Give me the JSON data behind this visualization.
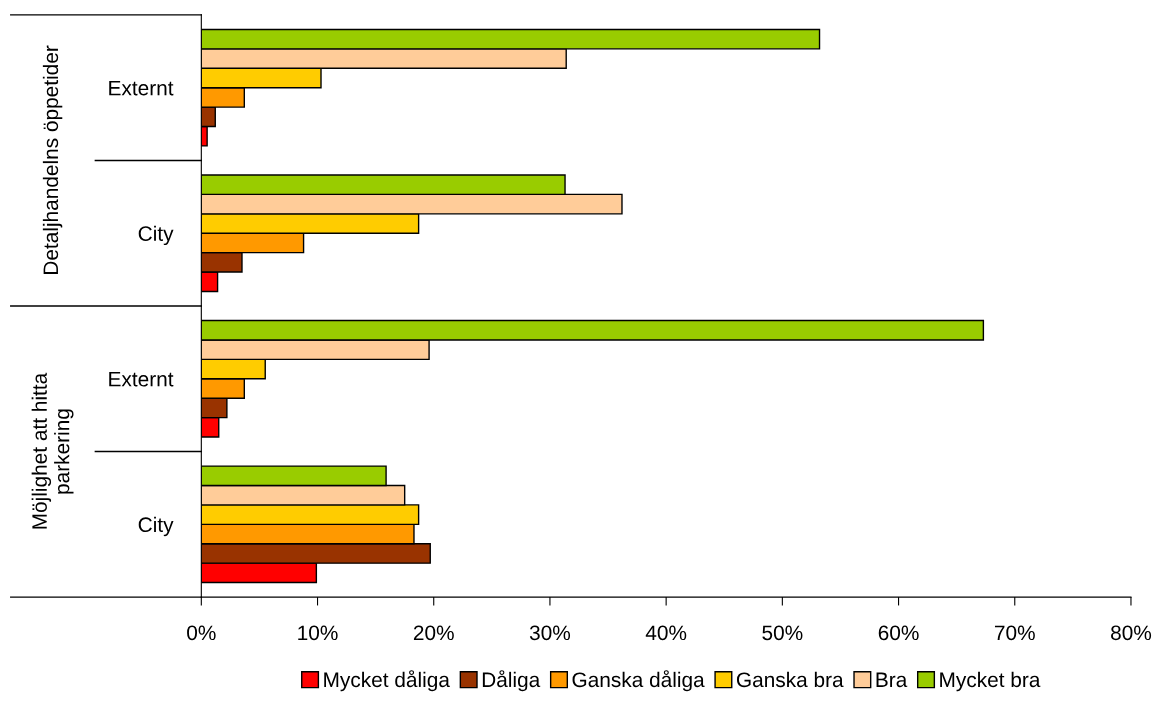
{
  "chart_data": {
    "type": "bar",
    "orientation": "horizontal",
    "categories": [
      "Externt",
      "City",
      "Externt",
      "City"
    ],
    "series": [
      {
        "name": "Mycket dåliga",
        "color": "#ff0000",
        "values": [
          0.5,
          1.4,
          1.5,
          9.9
        ]
      },
      {
        "name": "Dåliga",
        "color": "#993300",
        "values": [
          1.2,
          3.5,
          2.2,
          19.7
        ]
      },
      {
        "name": "Ganska dåliga",
        "color": "#ff9900",
        "values": [
          3.7,
          8.8,
          3.7,
          18.3
        ]
      },
      {
        "name": "Ganska bra",
        "color": "#ffcc00",
        "values": [
          10.3,
          18.7,
          5.5,
          18.7
        ]
      },
      {
        "name": "Bra",
        "color": "#ffcc99",
        "values": [
          31.4,
          36.2,
          19.6,
          17.5
        ]
      },
      {
        "name": "Mycket bra",
        "color": "#99cc00",
        "values": [
          53.2,
          31.3,
          67.3,
          15.9
        ]
      }
    ],
    "annotations": [
      "Detaljhandelns öppetider",
      "Möjlighet att hitta\nparkering"
    ],
    "xlim": [
      0,
      80
    ],
    "xticks": [
      {
        "value": 0,
        "label": "0%"
      },
      {
        "value": 10,
        "label": "10%"
      },
      {
        "value": 20,
        "label": "20%"
      },
      {
        "value": 30,
        "label": "30%"
      },
      {
        "value": 40,
        "label": "40%"
      },
      {
        "value": 50,
        "label": "50%"
      },
      {
        "value": 60,
        "label": "60%"
      },
      {
        "value": 70,
        "label": "70%"
      },
      {
        "value": 80,
        "label": "80%"
      }
    ],
    "grid": false,
    "legend": "bottom"
  }
}
